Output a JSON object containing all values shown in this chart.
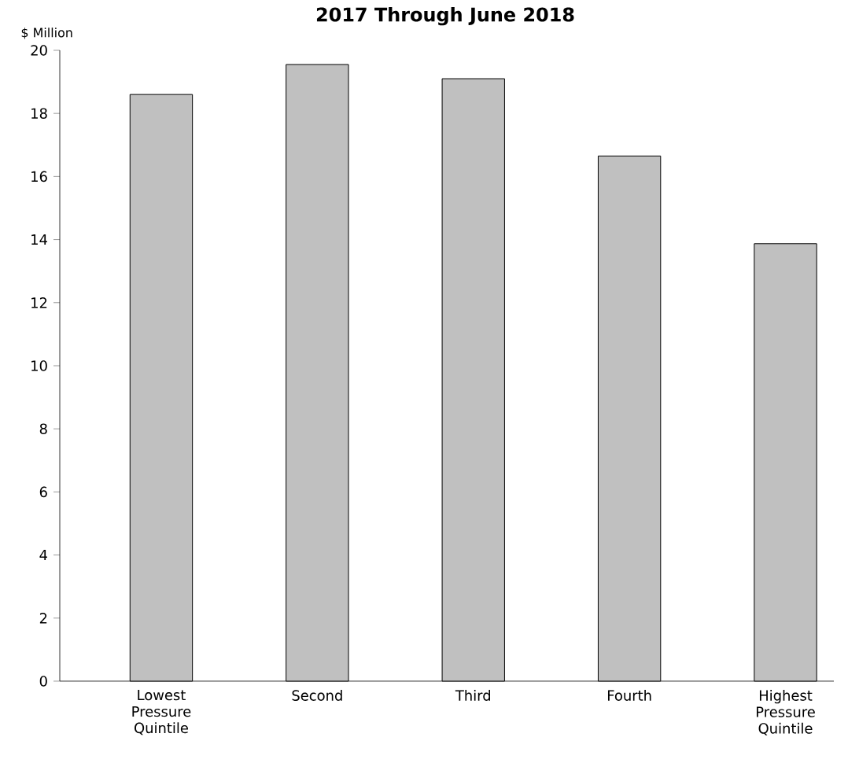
{
  "chart_data": {
    "type": "bar",
    "title": "2017 Through June 2018",
    "ylabel": "$ Million",
    "categories": [
      "Lowest Pressure Quintile",
      "Second",
      "Third",
      "Fourth",
      "Highest Pressure Quintile"
    ],
    "values": [
      18.6,
      19.55,
      19.1,
      16.65,
      13.87
    ],
    "color": "#c0c0c0",
    "ylim": [
      0,
      20
    ],
    "yticks": [
      0,
      2,
      4,
      6,
      8,
      10,
      12,
      14,
      16,
      18,
      20
    ],
    "grid": false
  }
}
